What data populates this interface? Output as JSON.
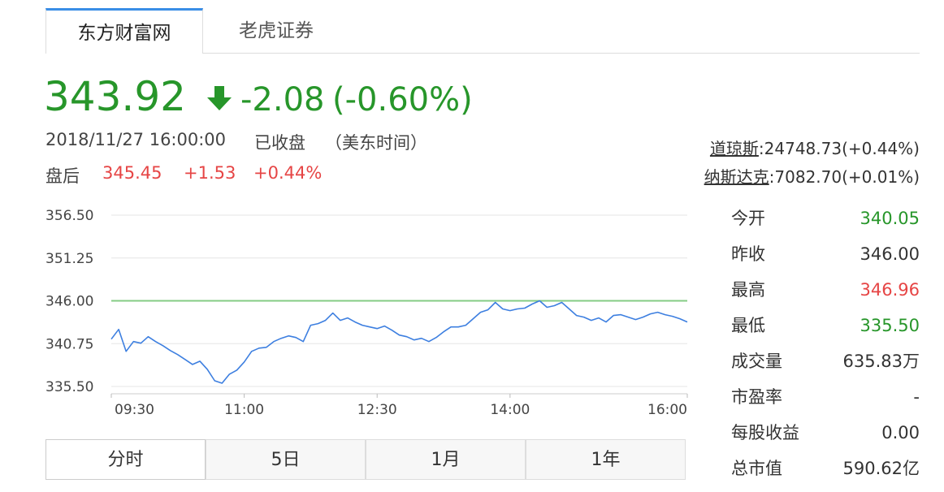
{
  "tabs": [
    "东方财富网",
    "老虎证券"
  ],
  "quote": {
    "price": "343.92",
    "change": "-2.08",
    "change_pct": "(-0.60%)",
    "color": "#27962a",
    "time": "2018/11/27 16:00:00",
    "status": "已收盘",
    "timezone": "（美东时间）",
    "after_hours": {
      "label": "盘后",
      "price": "345.45",
      "change": "+1.53",
      "change_pct": "+0.44%",
      "color": "#e64545"
    }
  },
  "market": [
    {
      "name": "道琼斯",
      "value": ":24748.73(+0.44%)"
    },
    {
      "name": "纳斯达克",
      "value": ":7082.70(+0.01%)"
    }
  ],
  "stats": [
    {
      "label": "今开",
      "value": "340.05",
      "color": "#27962a"
    },
    {
      "label": "昨收",
      "value": "346.00",
      "color": "#333333"
    },
    {
      "label": "最高",
      "value": "346.96",
      "color": "#e64545"
    },
    {
      "label": "最低",
      "value": "335.50",
      "color": "#27962a"
    },
    {
      "label": "成交量",
      "value": "635.83万",
      "color": "#333333"
    },
    {
      "label": "市盈率",
      "value": "-",
      "color": "#333333"
    },
    {
      "label": "每股收益",
      "value": "0.00",
      "color": "#333333"
    },
    {
      "label": "总市值",
      "value": "590.62亿",
      "color": "#333333"
    }
  ],
  "chart": {
    "type": "line",
    "color": "#3d7fe0",
    "grid": true,
    "x": [
      "09:30",
      "09:35",
      "09:40",
      "09:45",
      "09:50",
      "09:55",
      "10:00",
      "10:05",
      "10:10",
      "10:15",
      "10:20",
      "10:25",
      "10:30",
      "10:35",
      "10:40",
      "10:45",
      "10:50",
      "10:55",
      "11:00",
      "11:05",
      "11:10",
      "11:15",
      "11:20",
      "11:25",
      "11:30",
      "11:35",
      "11:40",
      "11:45",
      "11:50",
      "11:55",
      "12:00",
      "12:05",
      "12:10",
      "12:15",
      "12:20",
      "12:25",
      "12:30",
      "12:35",
      "12:40",
      "12:45",
      "12:50",
      "12:55",
      "13:00",
      "13:05",
      "13:10",
      "13:15",
      "13:20",
      "13:25",
      "13:30",
      "13:35",
      "13:40",
      "13:45",
      "13:50",
      "13:55",
      "14:00",
      "14:05",
      "14:10",
      "14:15",
      "14:20",
      "14:25",
      "14:30",
      "14:35",
      "14:40",
      "14:45",
      "14:50",
      "14:55",
      "15:00",
      "15:05",
      "15:10",
      "15:15",
      "15:20",
      "15:25",
      "15:30",
      "15:35",
      "15:40",
      "15:45",
      "15:50",
      "15:55",
      "16:00"
    ],
    "values": [
      341.3,
      342.5,
      339.8,
      341.0,
      340.8,
      341.6,
      341.0,
      340.5,
      339.9,
      339.4,
      338.8,
      338.2,
      338.6,
      337.6,
      336.2,
      335.9,
      337.0,
      337.5,
      338.5,
      339.8,
      340.2,
      340.3,
      341.0,
      341.4,
      341.7,
      341.5,
      341.0,
      343.0,
      343.2,
      343.6,
      344.5,
      343.6,
      343.9,
      343.4,
      343.0,
      342.8,
      342.6,
      342.9,
      342.4,
      341.8,
      341.6,
      341.2,
      341.4,
      341.0,
      341.5,
      342.2,
      342.8,
      342.8,
      343.0,
      343.8,
      344.6,
      344.9,
      345.8,
      345.0,
      344.8,
      345.0,
      345.1,
      345.6,
      346.0,
      345.2,
      345.4,
      345.8,
      345.0,
      344.2,
      344.0,
      343.6,
      343.9,
      343.4,
      344.2,
      344.3,
      344.0,
      343.7,
      344.0,
      344.4,
      344.6,
      344.3,
      344.1,
      343.8,
      343.4
    ],
    "xlim": [
      "09:30",
      "16:00"
    ],
    "xticks": [
      "09:30",
      "11:00",
      "12:30",
      "14:00",
      "16:00"
    ],
    "ylim": [
      335.5,
      356.5
    ],
    "yticks": [
      {
        "value": 356.5,
        "label": "356.50"
      },
      {
        "value": 351.25,
        "label": "351.25"
      },
      {
        "value": 346,
        "label": "346.00"
      },
      {
        "value": 340.75,
        "label": "340.75"
      },
      {
        "value": 335.5,
        "label": "335.50"
      }
    ],
    "reference_line": {
      "value": 346,
      "color": "#84cc84"
    }
  },
  "range_tabs": [
    "分时",
    "5日",
    "1月",
    "1年"
  ]
}
